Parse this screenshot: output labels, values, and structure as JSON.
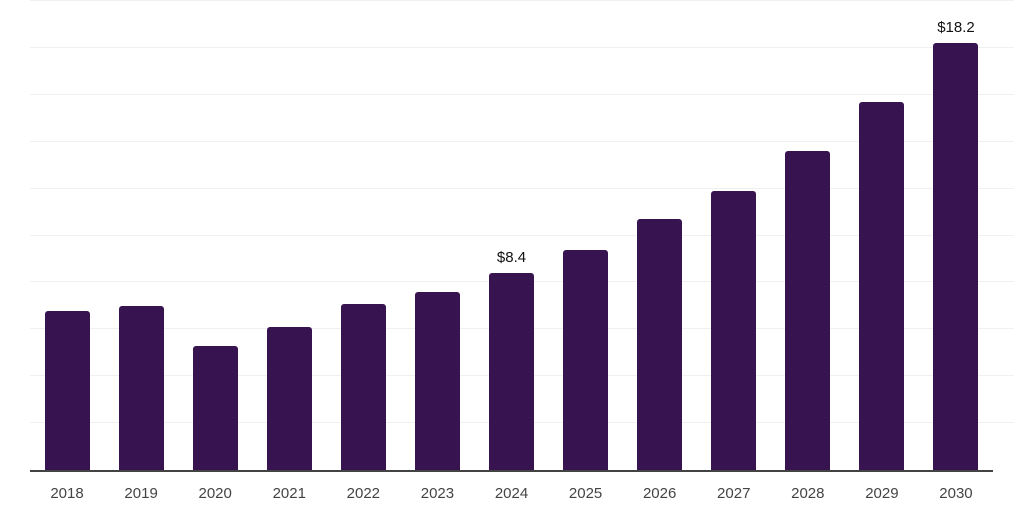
{
  "chart_data": {
    "type": "bar",
    "title": "",
    "categories": [
      "2018",
      "2019",
      "2020",
      "2021",
      "2022",
      "2023",
      "2024",
      "2025",
      "2026",
      "2027",
      "2028",
      "2029",
      "2030"
    ],
    "values": [
      6.8,
      7.0,
      5.3,
      6.1,
      7.1,
      7.6,
      8.4,
      9.4,
      10.7,
      11.9,
      13.6,
      15.7,
      18.2
    ],
    "value_labels": [
      "",
      "",
      "",
      "",
      "",
      "",
      "$8.4",
      "",
      "",
      "",
      "",
      "",
      "$18.2"
    ],
    "xlabel": "",
    "ylabel": "",
    "ylim": [
      0,
      20
    ],
    "grid_step": 2,
    "grid": "horizontal",
    "legend": false,
    "y_axis_ticks_visible": false,
    "bar_color": "#371450",
    "grid_color": "#f0f0f0",
    "axis_color": "#434343",
    "value_label_color": "#111111",
    "tick_label_color": "#444444"
  }
}
